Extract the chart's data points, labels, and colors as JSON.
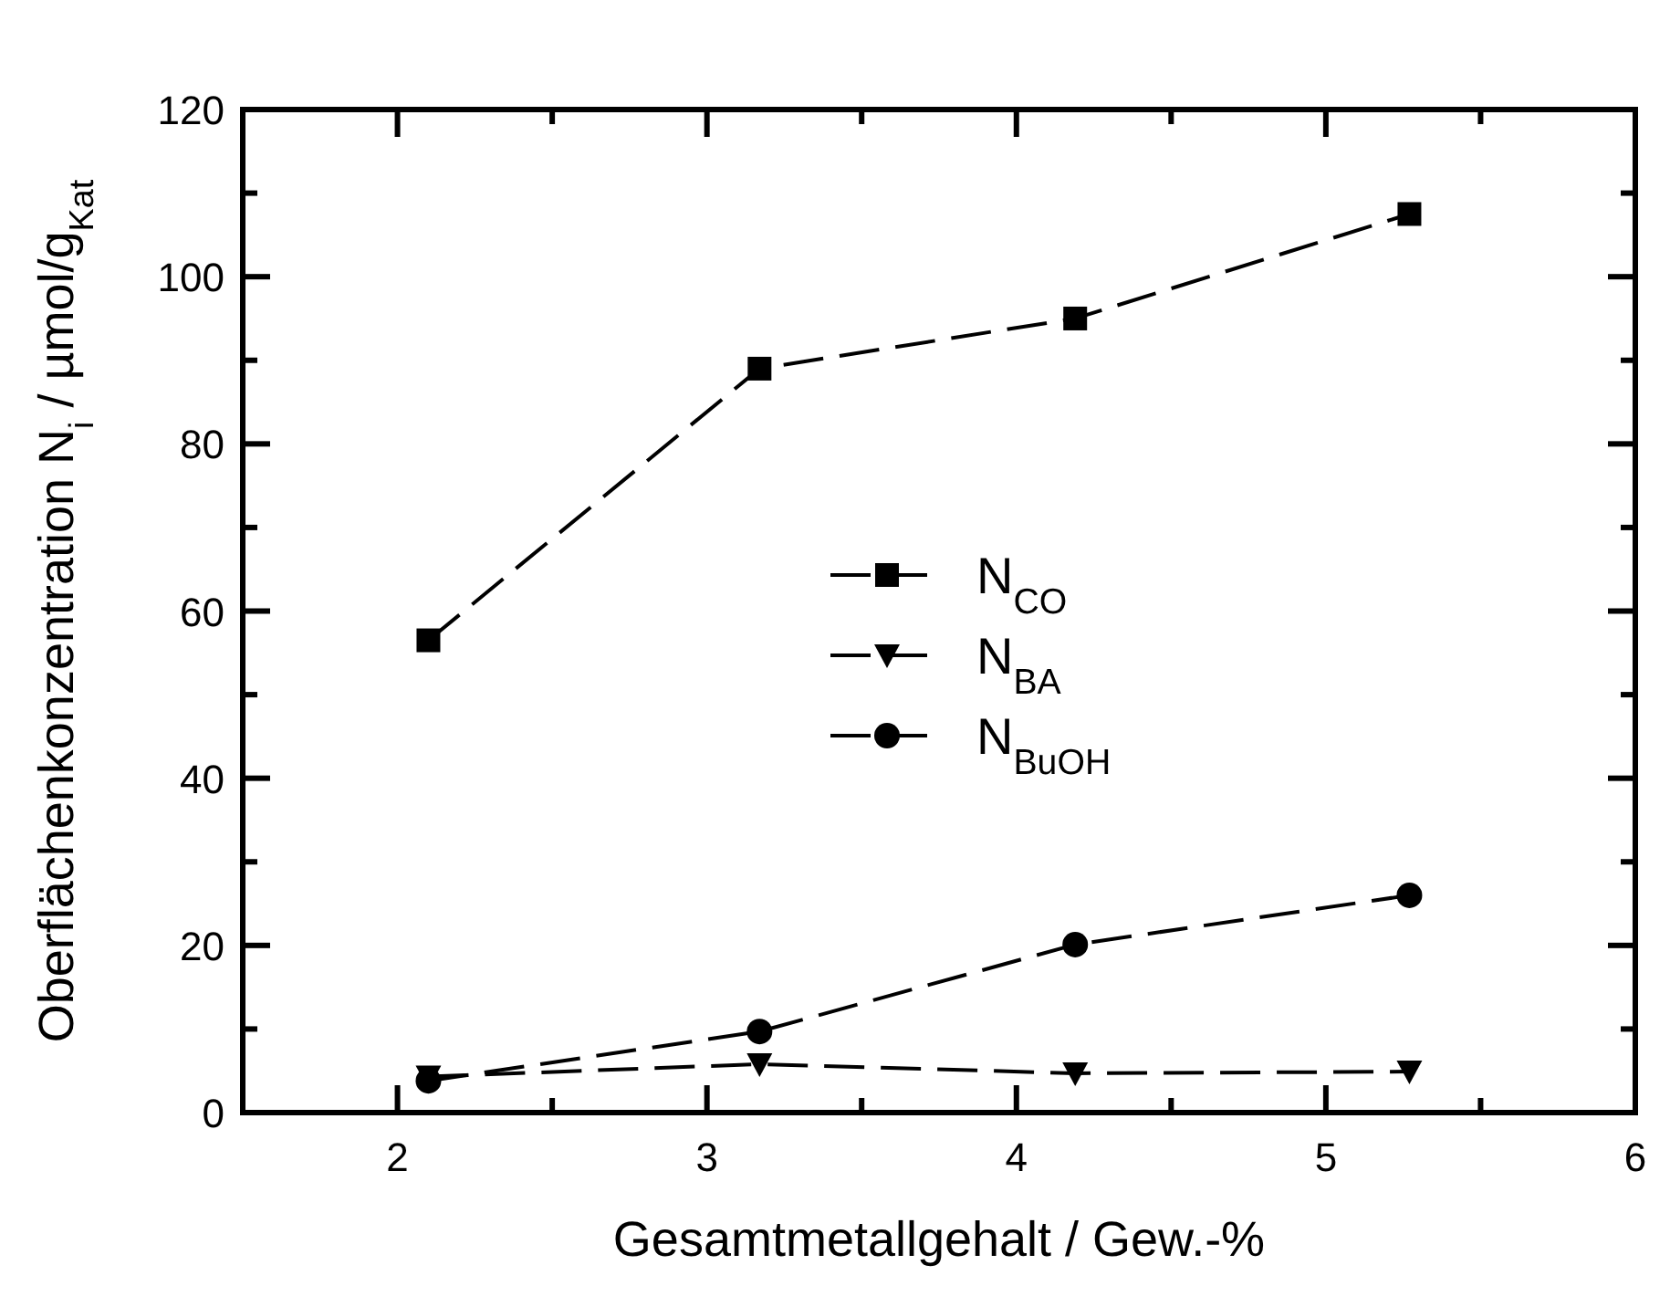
{
  "chart_data": {
    "type": "line",
    "xlabel": "Gesamtmetallgehalt  /  Gew.-%",
    "ylabel": "Oberflächenkonzentration N$_{i}$  /  µmol/g$_{Kat}$",
    "xlim": [
      1.5,
      6
    ],
    "xticks": [
      2,
      {
        "value": 2.5,
        "label": null
      },
      3,
      {
        "value": 3.5,
        "label": null
      },
      4,
      {
        "value": 4.5,
        "label": null
      },
      5,
      {
        "value": 5.5,
        "label": null
      },
      6
    ],
    "ylim": [
      0,
      120
    ],
    "yticks": [
      0,
      {
        "value": 10,
        "label": null
      },
      20,
      {
        "value": 30,
        "label": null
      },
      40,
      {
        "value": 50,
        "label": null
      },
      60,
      {
        "value": 70,
        "label": null
      },
      80,
      {
        "value": 90,
        "label": null
      },
      100,
      {
        "value": 110,
        "label": null
      },
      120
    ],
    "grid": false,
    "legend": "center",
    "series": [
      {
        "name": "N$_{CO}$",
        "color": "#000000",
        "marker": "square",
        "line_style": "dashed",
        "x": [
          2.1,
          3.17,
          4.19,
          5.27
        ],
        "values": [
          56.5,
          89,
          95,
          107.5
        ]
      },
      {
        "name": "N$_{BA}$",
        "color": "#000000",
        "marker": "triangle",
        "line_style": "dashed",
        "x": [
          2.1,
          3.17,
          4.19,
          5.27
        ],
        "values": [
          4.3,
          5.8,
          4.7,
          4.9
        ]
      },
      {
        "name": "N$_{BuOH}$",
        "color": "#000000",
        "marker": "circle",
        "line_style": "dashed",
        "x": [
          2.1,
          3.17,
          4.19,
          5.27
        ],
        "values": [
          3.8,
          9.7,
          20.1,
          26
        ]
      }
    ]
  }
}
